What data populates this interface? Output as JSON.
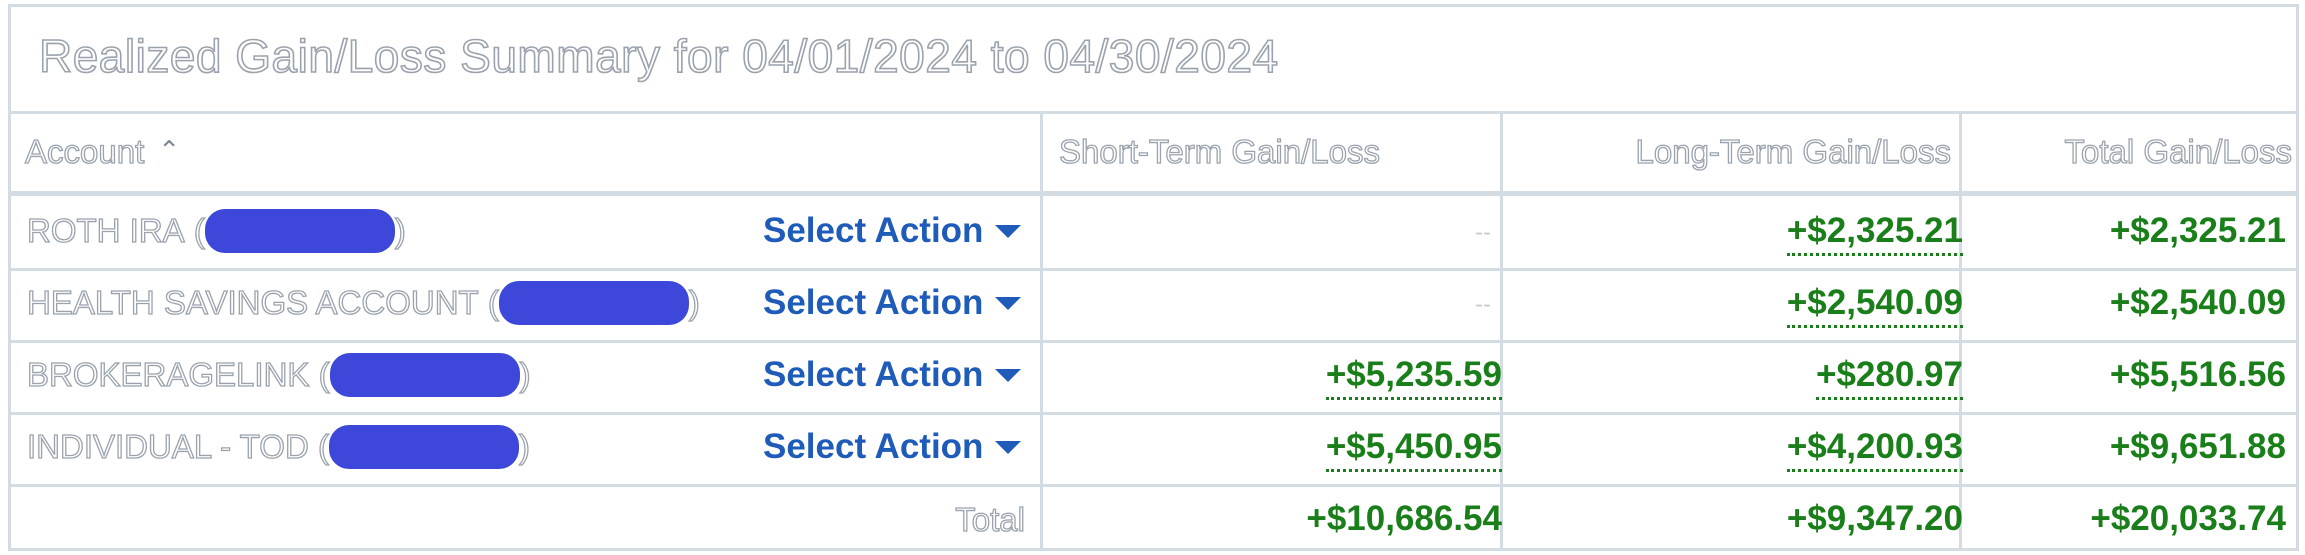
{
  "title": "Realized Gain/Loss Summary for 04/01/2024 to 04/30/2024",
  "columns": {
    "account": "Account",
    "short_term": "Short-Term Gain/Loss",
    "long_term": "Long-Term Gain/Loss",
    "total": "Total Gain/Loss"
  },
  "sort_indicator": "^",
  "rows": [
    {
      "account": "ROTH IRA",
      "action_label": "Select Action",
      "short_term": "--",
      "long_term": "+$2,325.21",
      "total": "+$2,325.21"
    },
    {
      "account": "HEALTH SAVINGS ACCOUNT",
      "action_label": "Select Action",
      "short_term": "--",
      "long_term": "+$2,540.09",
      "total": "+$2,540.09"
    },
    {
      "account": "BROKERAGELINK",
      "action_label": "Select Action",
      "short_term": "+$5,235.59",
      "long_term": "+$280.97",
      "total": "+$5,516.56"
    },
    {
      "account": "INDIVIDUAL - TOD",
      "action_label": "Select Action",
      "short_term": "+$5,450.95",
      "long_term": "+$4,200.93",
      "total": "+$9,651.88"
    }
  ],
  "totals": {
    "label": "Total",
    "short_term": "+$10,686.54",
    "long_term": "+$9,347.20",
    "total": "+$20,033.74"
  },
  "icons": {
    "sort": "chevron-up-icon",
    "dropdown": "caret-down-icon"
  },
  "colors": {
    "gain": "#1a7f1a",
    "link": "#1f5bb8",
    "redaction": "#3d47d9",
    "grid": "#d3dbe3"
  }
}
